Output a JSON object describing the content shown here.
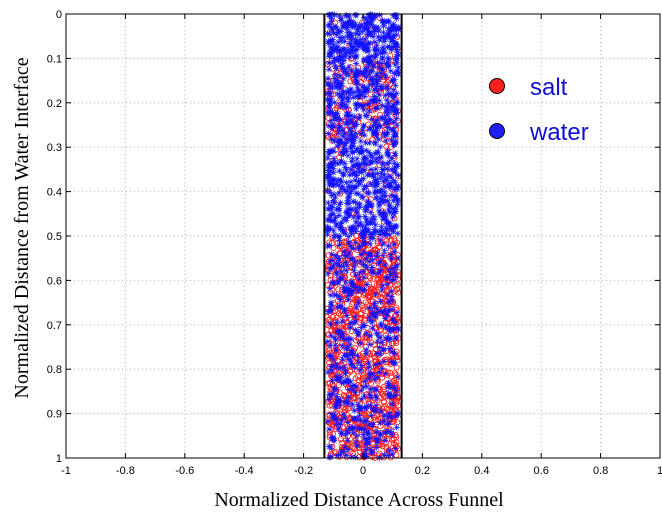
{
  "chart_data": {
    "type": "scatter",
    "xlabel": "Normalized Distance Across Funnel",
    "ylabel": "Normalized Distance from Water Interface",
    "xlim": [
      -1,
      1
    ],
    "ylim": [
      0,
      1
    ],
    "y_reversed": true,
    "x_ticks": [
      -1,
      -0.8,
      -0.6,
      -0.4,
      -0.2,
      0,
      0.2,
      0.4,
      0.6,
      0.8,
      1
    ],
    "x_tick_labels": [
      "-1",
      "-0.8",
      "-0.6",
      "-0.4",
      "-0.2",
      "0",
      "0.2",
      "0.4",
      "0.6",
      "0.8",
      "1"
    ],
    "y_ticks": [
      0,
      0.1,
      0.2,
      0.3,
      0.4,
      0.5,
      0.6,
      0.7,
      0.8,
      0.9,
      1
    ],
    "y_tick_labels": [
      "0",
      "0.1",
      "0.2",
      "0.3",
      "0.4",
      "0.5",
      "0.6",
      "0.7",
      "0.8",
      "0.9",
      "1"
    ],
    "grid": true,
    "grid_style": "dotted",
    "funnel_walls_x": [
      -0.13,
      0.13
    ],
    "legend": {
      "placement": "top-right",
      "entries": [
        {
          "label": "salt",
          "color": "#ff2020"
        },
        {
          "label": "water",
          "color": "#2020ff"
        }
      ]
    },
    "series": [
      {
        "name": "salt",
        "marker": "circle",
        "color": "#ff2020",
        "count": 1300,
        "x_range": [
          -0.13,
          0.13
        ],
        "y_density": [
          {
            "y": [
              0.0,
              0.1
            ],
            "weight": 0.05
          },
          {
            "y": [
              0.1,
              0.3
            ],
            "weight": 0.45
          },
          {
            "y": [
              0.3,
              0.5
            ],
            "weight": 0.15
          },
          {
            "y": [
              0.5,
              1.0
            ],
            "weight": 1.0
          }
        ]
      },
      {
        "name": "water",
        "marker": "asterisk",
        "color": "#1010ff",
        "count": 1500,
        "x_range": [
          -0.13,
          0.13
        ],
        "y_density": [
          {
            "y": [
              0.0,
              0.1
            ],
            "weight": 1.0
          },
          {
            "y": [
              0.1,
              0.3
            ],
            "weight": 0.75
          },
          {
            "y": [
              0.3,
              0.5
            ],
            "weight": 0.85
          },
          {
            "y": [
              0.5,
              1.0
            ],
            "weight": 0.4
          }
        ]
      }
    ]
  }
}
